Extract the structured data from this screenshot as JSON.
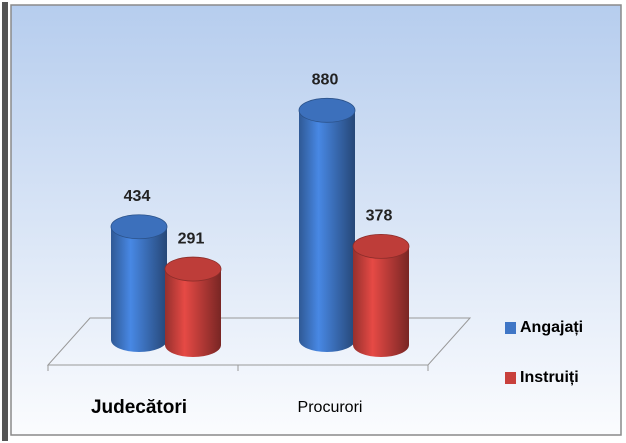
{
  "chart_data": {
    "type": "bar3d-cylinder",
    "categories": [
      "Judecători",
      "Procurori"
    ],
    "series": [
      {
        "name": "Angajați",
        "color": "#3f76c6",
        "values": [
          434,
          880
        ]
      },
      {
        "name": "Instruiți",
        "color": "#c8403c",
        "values": [
          291,
          378
        ]
      }
    ],
    "legend": "right"
  }
}
